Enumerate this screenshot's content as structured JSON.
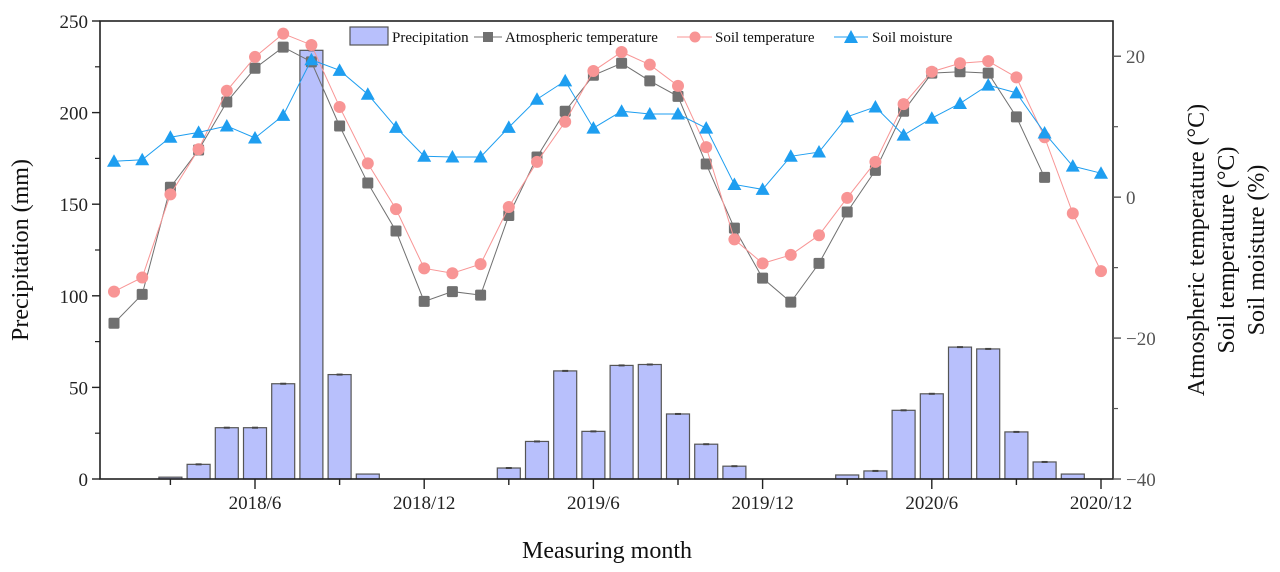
{
  "chart_data": {
    "type": "bar+line",
    "title": "",
    "xlabel": "Measuring month",
    "ylabel_left": "Precipitation (mm)",
    "ylabel_right": [
      "Atmospheric temperature (°C)",
      "Soil temperature (°C)",
      "Soil moisture (%)"
    ],
    "ylim_left": [
      0,
      250
    ],
    "ylim_right": [
      -40,
      25
    ],
    "left_ticks": [
      0,
      50,
      100,
      150,
      200,
      250
    ],
    "right_ticks": [
      -40,
      -20,
      0,
      20
    ],
    "x_tick_labels": [
      {
        "index": 5,
        "label": "2018/6"
      },
      {
        "index": 11,
        "label": "2018/12"
      },
      {
        "index": 17,
        "label": "2019/6"
      },
      {
        "index": 23,
        "label": "2019/12"
      },
      {
        "index": 29,
        "label": "2020/6"
      },
      {
        "index": 35,
        "label": "2020/12"
      }
    ],
    "months": [
      "2018/1",
      "2018/2",
      "2018/3",
      "2018/4",
      "2018/5",
      "2018/6",
      "2018/7",
      "2018/8",
      "2018/9",
      "2018/10",
      "2018/11",
      "2018/12",
      "2019/1",
      "2019/2",
      "2019/3",
      "2019/4",
      "2019/5",
      "2019/6",
      "2019/7",
      "2019/8",
      "2019/9",
      "2019/10",
      "2019/11",
      "2019/12",
      "2020/1",
      "2020/2",
      "2020/3",
      "2020/4",
      "2020/5",
      "2020/6",
      "2020/7",
      "2020/8",
      "2020/9",
      "2020/10",
      "2020/11",
      "2020/12"
    ],
    "legend": {
      "placement": "top-center",
      "entries": [
        "Precipitation",
        "Atmospheric temperature",
        "Soil temperature",
        "Soil moisture"
      ]
    },
    "series": [
      {
        "name": "Precipitation",
        "type": "bar",
        "axis": "left",
        "color": "#b8c0fc",
        "values": [
          0,
          0,
          1,
          8,
          28,
          28,
          52,
          234,
          57,
          2.7,
          0,
          0,
          0,
          0,
          6,
          20.5,
          59,
          26,
          62,
          62.5,
          35.5,
          19,
          7,
          0,
          0,
          0,
          2.2,
          4.4,
          37.5,
          46.5,
          72,
          71,
          25.7,
          9.3,
          2.7,
          0
        ]
      },
      {
        "name": "Atmospheric temperature",
        "type": "line",
        "marker": "square",
        "axis": "right",
        "color": "#707070",
        "values": [
          -17.9,
          -13.8,
          1.4,
          6.7,
          13.5,
          18.3,
          21.3,
          19.2,
          10.1,
          2.0,
          -4.8,
          -14.8,
          -13.4,
          -13.9,
          -2.6,
          5.7,
          12.2,
          17.3,
          19.0,
          16.5,
          14.3,
          4.7,
          -4.4,
          -11.5,
          -14.9,
          -9.4,
          -2.1,
          3.8,
          12.2,
          17.6,
          17.8,
          17.6,
          11.4,
          2.8,
          null,
          null
        ]
      },
      {
        "name": "Soil temperature",
        "type": "line",
        "marker": "circle",
        "axis": "right",
        "color": "#f89595",
        "values": [
          -13.4,
          -11.4,
          0.4,
          6.8,
          15.1,
          19.9,
          23.2,
          21.6,
          12.8,
          4.8,
          -1.7,
          -10.1,
          -10.8,
          -9.5,
          -1.4,
          5.0,
          10.7,
          17.9,
          20.6,
          18.8,
          15.8,
          7.1,
          -6.0,
          -9.4,
          -8.2,
          -5.4,
          -0.1,
          5.0,
          13.2,
          17.8,
          19.0,
          19.3,
          17.0,
          8.5,
          -2.3,
          -10.5
        ]
      },
      {
        "name": "Soil moisture",
        "type": "line",
        "marker": "triangle",
        "axis": "right",
        "color": "#1e9ef0",
        "values": [
          5.1,
          5.3,
          8.5,
          9.2,
          10.1,
          8.4,
          11.6,
          19.5,
          18.0,
          14.6,
          9.9,
          5.8,
          5.7,
          5.7,
          9.9,
          13.9,
          16.5,
          9.8,
          12.2,
          11.8,
          11.8,
          9.8,
          1.8,
          1.1,
          5.8,
          6.4,
          11.4,
          12.8,
          8.8,
          11.2,
          13.3,
          15.9,
          14.8,
          9.1,
          4.4,
          3.4
        ]
      }
    ]
  }
}
